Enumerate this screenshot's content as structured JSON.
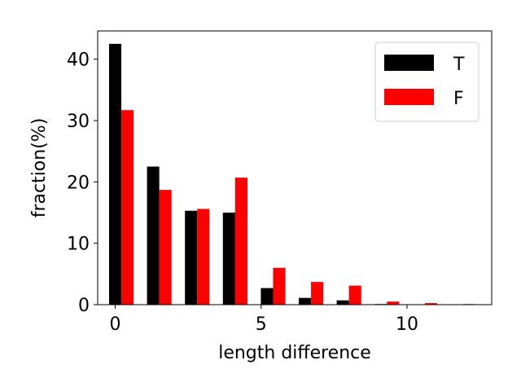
{
  "chart_data": {
    "type": "bar",
    "xlabel": "length difference",
    "ylabel": "fraction(%)",
    "xlim": [
      -0.6,
      12.9
    ],
    "ylim": [
      0,
      44.6
    ],
    "xticks": [
      0,
      5,
      10
    ],
    "yticks": [
      0,
      10,
      20,
      30,
      40
    ],
    "bar_width": 0.42,
    "legend_position": "upper right",
    "grid": false,
    "series": [
      {
        "name": "T",
        "color": "#000000",
        "x": [
          0.0,
          1.3,
          2.6,
          3.9,
          5.2,
          6.5,
          7.8,
          9.1,
          10.4,
          11.7
        ],
        "values": [
          42.5,
          22.5,
          15.3,
          15.0,
          2.7,
          1.1,
          0.7,
          0.1,
          0.05,
          0.03
        ]
      },
      {
        "name": "F",
        "color": "#ff0000",
        "x": [
          0.42,
          1.72,
          3.02,
          4.32,
          5.62,
          6.92,
          8.22,
          9.52,
          10.82,
          12.12
        ],
        "values": [
          31.7,
          18.7,
          15.6,
          20.7,
          6.0,
          3.7,
          3.1,
          0.5,
          0.25,
          0.1
        ]
      }
    ]
  }
}
